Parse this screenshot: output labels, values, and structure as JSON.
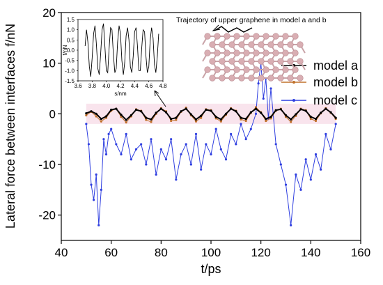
{
  "chart_data": [
    {
      "type": "line",
      "xlabel": "t/ps",
      "ylabel": "Lateral force between interfaces f/nN",
      "xlim": [
        40,
        160
      ],
      "ylim": [
        -25,
        20
      ],
      "xticks": [
        "40",
        "60",
        "80",
        "100",
        "120",
        "140",
        "160"
      ],
      "yticks": [
        "-20",
        "-10",
        "0",
        "10",
        "20"
      ],
      "legend_position": "right",
      "series": [
        {
          "name": "model a",
          "color": "#000000",
          "x": [
            50,
            52,
            54,
            56,
            58,
            60,
            62,
            64,
            66,
            68,
            70,
            72,
            74,
            76,
            78,
            80,
            82,
            84,
            86,
            88,
            90,
            92,
            94,
            96,
            98,
            100,
            102,
            104,
            106,
            108,
            110,
            112,
            114,
            116,
            118,
            120,
            122,
            124,
            126,
            128,
            130,
            132,
            134,
            136,
            138,
            140,
            142,
            144,
            146,
            148,
            150
          ],
          "y": [
            0.1,
            0.5,
            0.0,
            -1.0,
            -0.5,
            0.8,
            1.0,
            -0.2,
            -1.2,
            -0.3,
            0.8,
            0.5,
            -0.8,
            -1.1,
            0.2,
            1.0,
            0.3,
            -1.0,
            -0.8,
            0.5,
            1.0,
            -0.1,
            -1.1,
            -0.4,
            0.8,
            0.6,
            -0.6,
            -1.1,
            0.0,
            1.0,
            0.5,
            -0.8,
            -1.0,
            0.3,
            1.0,
            0.2,
            -1.0,
            -0.6,
            0.7,
            0.9,
            -0.3,
            -1.1,
            -0.1,
            0.9,
            0.6,
            -0.6,
            -1.0,
            0.2,
            1.0,
            0.3,
            -0.8
          ]
        },
        {
          "name": "model b",
          "color": "#c0702a",
          "x": [
            50,
            52,
            54,
            56,
            58,
            60,
            62,
            64,
            66,
            68,
            70,
            72,
            74,
            76,
            78,
            80,
            82,
            84,
            86,
            88,
            90,
            92,
            94,
            96,
            98,
            100,
            102,
            104,
            106,
            108,
            110,
            112,
            114,
            116,
            118,
            120,
            122,
            124,
            126,
            128,
            130,
            132,
            134,
            136,
            138,
            140,
            142,
            144,
            146,
            148,
            150
          ],
          "y": [
            -0.3,
            0.4,
            -0.5,
            -1.5,
            -0.8,
            0.6,
            1.0,
            -0.6,
            -1.7,
            -0.5,
            0.9,
            0.6,
            -1.2,
            -1.6,
            0.0,
            1.1,
            0.5,
            -1.4,
            -1.2,
            0.4,
            1.2,
            -0.3,
            -1.5,
            -0.8,
            0.9,
            0.7,
            -0.9,
            -1.5,
            -0.2,
            1.1,
            0.6,
            -1.1,
            -1.4,
            0.2,
            1.3,
            0.3,
            -1.4,
            -0.9,
            0.6,
            1.0,
            -0.6,
            -1.6,
            -0.4,
            1.0,
            0.7,
            -1.0,
            -1.4,
            0.1,
            1.1,
            0.2,
            -1.0
          ]
        },
        {
          "name": "model c",
          "color": "#2f3fe0",
          "x": [
            50,
            51,
            52,
            53,
            54,
            55,
            56,
            57,
            58,
            59,
            60,
            62,
            64,
            66,
            68,
            70,
            72,
            74,
            76,
            78,
            80,
            82,
            84,
            86,
            88,
            90,
            92,
            94,
            96,
            98,
            100,
            102,
            104,
            106,
            108,
            110,
            112,
            114,
            116,
            118,
            119,
            120,
            121,
            122,
            123,
            124,
            126,
            128,
            130,
            132,
            134,
            136,
            138,
            140,
            142,
            144,
            146,
            148,
            150
          ],
          "y": [
            -2,
            -6,
            -14,
            -17,
            -12,
            -22,
            -15,
            -5,
            -8,
            -4,
            -3,
            -6,
            -8,
            -4,
            -9,
            -7,
            -6,
            -10,
            -5,
            -12,
            -7,
            -9,
            -5,
            -13,
            -8,
            -6,
            -10,
            -4,
            -11,
            -6,
            -8,
            -3,
            -7,
            -9,
            -4,
            -6,
            -2,
            -5,
            -3,
            0,
            6,
            10,
            3,
            7,
            -1,
            5,
            -6,
            -10,
            -14,
            -22,
            -12,
            -15,
            -9,
            -13,
            -8,
            -11,
            -4,
            -7,
            -2
          ]
        }
      ]
    },
    {
      "type": "line",
      "xlabel": "s/nm",
      "ylabel": "f/nN",
      "xlim": [
        3.6,
        4.8
      ],
      "ylim": [
        -1.5,
        1.5
      ],
      "xticks": [
        "3.6",
        "3.8",
        "4.0",
        "4.2",
        "4.4",
        "4.6",
        "4.8"
      ],
      "yticks": [
        "-1.5",
        "-1.0",
        "-0.5",
        "0.0",
        "0.5",
        "1.0",
        "1.5"
      ],
      "series": [
        {
          "color": "#000000",
          "x": [
            3.7,
            3.72,
            3.74,
            3.76,
            3.78,
            3.8,
            3.82,
            3.84,
            3.86,
            3.88,
            3.9,
            3.92,
            3.94,
            3.96,
            3.98,
            4.0,
            4.02,
            4.04,
            4.06,
            4.08,
            4.1,
            4.12,
            4.14,
            4.16,
            4.18,
            4.2,
            4.22,
            4.24,
            4.26,
            4.28,
            4.3,
            4.32,
            4.34,
            4.36,
            4.38,
            4.4,
            4.42,
            4.44,
            4.46,
            4.48,
            4.5,
            4.52,
            4.54,
            4.56,
            4.58,
            4.6,
            4.62,
            4.64,
            4.66,
            4.68,
            4.7,
            4.72,
            4.74
          ],
          "y": [
            0.2,
            1.0,
            0.4,
            -0.8,
            -1.3,
            -0.4,
            0.8,
            1.2,
            0.3,
            -0.9,
            -1.2,
            -0.2,
            1.0,
            1.3,
            0.2,
            -1.0,
            -1.1,
            0.1,
            1.1,
            1.0,
            -0.2,
            -1.1,
            -0.9,
            0.4,
            1.2,
            0.8,
            -0.5,
            -1.2,
            -0.6,
            0.7,
            1.1,
            0.5,
            -0.8,
            -1.1,
            -0.3,
            0.9,
            1.1,
            0.2,
            -1.0,
            -1.0,
            0.1,
            1.0,
            0.9,
            -0.3,
            -1.1,
            -0.8,
            0.5,
            1.1,
            0.6,
            -0.7,
            -1.1,
            -0.3,
            0.8
          ]
        }
      ]
    }
  ],
  "inset_title": "Trajectory of upper graphene in model a and b"
}
